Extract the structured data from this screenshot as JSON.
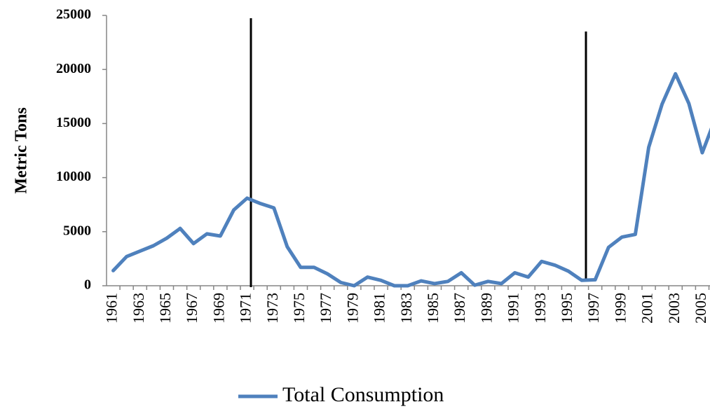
{
  "chart_data": {
    "type": "line",
    "y_label": "Metric Tons",
    "categories": [
      "1961",
      null,
      "1963",
      null,
      "1965",
      null,
      "1967",
      null,
      "1969",
      null,
      "1971",
      null,
      "1973",
      null,
      "1975",
      null,
      "1977",
      null,
      "1979",
      null,
      "1981",
      null,
      "1983",
      null,
      "1985",
      null,
      "1987",
      null,
      "1989",
      null,
      "1991",
      null,
      "1993",
      null,
      "1995",
      null,
      "1997",
      null,
      "1999",
      null,
      "2001",
      null,
      "2003",
      null,
      "2005",
      null
    ],
    "series": [
      {
        "name": "Total Consumption",
        "color": "#4f81bd",
        "values": [
          1400,
          2700,
          3200,
          3700,
          4400,
          5300,
          3900,
          4800,
          4600,
          7000,
          8100,
          7600,
          7200,
          3600,
          1700,
          1700,
          1100,
          300,
          0,
          800,
          500,
          0,
          0,
          450,
          200,
          400,
          1200,
          50,
          400,
          200,
          1200,
          800,
          2250,
          1900,
          1350,
          500,
          550,
          3550,
          4500,
          4750,
          12800,
          16800,
          19600,
          16850,
          12300,
          15550
        ]
      }
    ],
    "ylim": [
      0,
      25000
    ],
    "yticks": [
      0,
      5000,
      10000,
      15000,
      20000,
      25000
    ]
  }
}
